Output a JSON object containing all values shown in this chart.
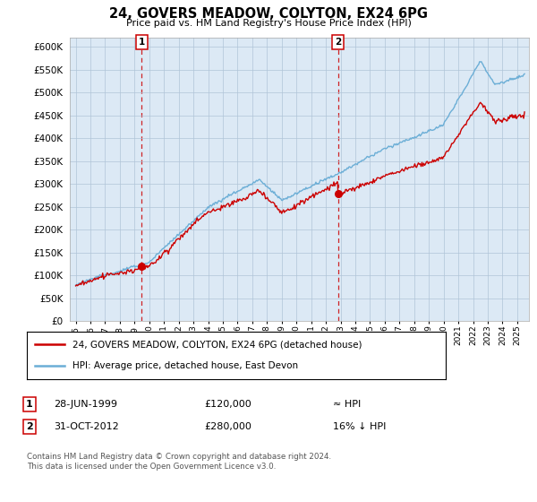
{
  "title": "24, GOVERS MEADOW, COLYTON, EX24 6PG",
  "subtitle": "Price paid vs. HM Land Registry's House Price Index (HPI)",
  "ylim": [
    0,
    620000
  ],
  "yticks": [
    0,
    50000,
    100000,
    150000,
    200000,
    250000,
    300000,
    350000,
    400000,
    450000,
    500000,
    550000,
    600000
  ],
  "ytick_labels": [
    "£0",
    "£50K",
    "£100K",
    "£150K",
    "£200K",
    "£250K",
    "£300K",
    "£350K",
    "£400K",
    "£450K",
    "£500K",
    "£550K",
    "£600K"
  ],
  "sale1": {
    "date_num": 1999.49,
    "price": 120000,
    "label": "1",
    "date_str": "28-JUN-1999",
    "price_str": "£120,000",
    "note": "≈ HPI"
  },
  "sale2": {
    "date_num": 2012.83,
    "price": 280000,
    "label": "2",
    "date_str": "31-OCT-2012",
    "price_str": "£280,000",
    "note": "16% ↓ HPI"
  },
  "legend_line1": "24, GOVERS MEADOW, COLYTON, EX24 6PG (detached house)",
  "legend_line2": "HPI: Average price, detached house, East Devon",
  "footer": "Contains HM Land Registry data © Crown copyright and database right 2024.\nThis data is licensed under the Open Government Licence v3.0.",
  "property_color": "#cc0000",
  "hpi_color": "#6baed6",
  "plot_bg_color": "#dce9f5",
  "background_color": "#ffffff",
  "grid_color": "#b0c4d8"
}
